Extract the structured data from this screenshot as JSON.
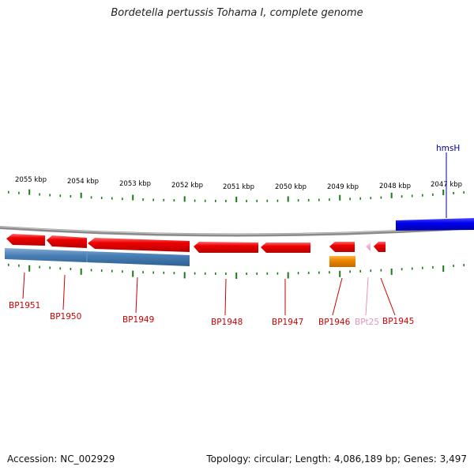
{
  "title": "Bordetella pertussis Tohama I, complete genome",
  "footer": {
    "accession": "Accession: NC_002929",
    "summary": "Topology: circular; Length: 4,086,189 bp; Genes: 3,497"
  },
  "colors": {
    "red_gene": "#ee0000",
    "steel_gene": "#4a80b6",
    "blue_gene": "#0000ee",
    "orange_gene": "#ee8800",
    "pink_gene": "#f2a0c8",
    "tick_green": "#1a7a1a",
    "label_red": "#cc0000",
    "label_pink": "#e890c0",
    "label_navy": "#000099",
    "backbone": "#888888"
  },
  "scale_labels": [
    "2055 kbp",
    "2054 kbp",
    "2053 kbp",
    "2052 kbp",
    "2051 kbp",
    "2050 kbp",
    "2049 kbp",
    "2048 kbp",
    "2047 kbp"
  ],
  "gene_labels": [
    "BP1951",
    "BP1950",
    "BP1949",
    "BP1948",
    "BP1947",
    "BP1946",
    "BPt25",
    "BP1945",
    "hmsH"
  ]
}
